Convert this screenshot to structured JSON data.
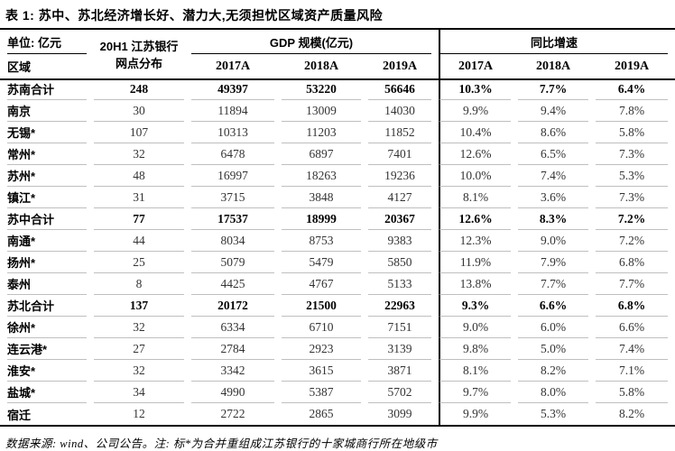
{
  "title": "表 1: 苏中、苏北经济增长好、潜力大,无须担忧区域资产质量风险",
  "header": {
    "unit_label": "单位: 亿元",
    "region_label": "区域",
    "branch_label_line1": "20H1 江苏银行",
    "branch_label_line2": "网点分布",
    "gdp_group_label": "GDP 规模(亿元)",
    "growth_group_label": "同比增速",
    "year_cols": [
      "2017A",
      "2018A",
      "2019A"
    ]
  },
  "rows": [
    {
      "region": "苏南合计",
      "subtotal": true,
      "branches": "248",
      "gdp": [
        "49397",
        "53220",
        "56646"
      ],
      "growth": [
        "10.3%",
        "7.7%",
        "6.4%"
      ]
    },
    {
      "region": "南京",
      "subtotal": false,
      "branches": "30",
      "gdp": [
        "11894",
        "13009",
        "14030"
      ],
      "growth": [
        "9.9%",
        "9.4%",
        "7.8%"
      ]
    },
    {
      "region": "无锡*",
      "subtotal": false,
      "branches": "107",
      "gdp": [
        "10313",
        "11203",
        "11852"
      ],
      "growth": [
        "10.4%",
        "8.6%",
        "5.8%"
      ]
    },
    {
      "region": "常州*",
      "subtotal": false,
      "branches": "32",
      "gdp": [
        "6478",
        "6897",
        "7401"
      ],
      "growth": [
        "12.6%",
        "6.5%",
        "7.3%"
      ]
    },
    {
      "region": "苏州*",
      "subtotal": false,
      "branches": "48",
      "gdp": [
        "16997",
        "18263",
        "19236"
      ],
      "growth": [
        "10.0%",
        "7.4%",
        "5.3%"
      ]
    },
    {
      "region": "镇江*",
      "subtotal": false,
      "branches": "31",
      "gdp": [
        "3715",
        "3848",
        "4127"
      ],
      "growth": [
        "8.1%",
        "3.6%",
        "7.3%"
      ]
    },
    {
      "region": "苏中合计",
      "subtotal": true,
      "branches": "77",
      "gdp": [
        "17537",
        "18999",
        "20367"
      ],
      "growth": [
        "12.6%",
        "8.3%",
        "7.2%"
      ]
    },
    {
      "region": "南通*",
      "subtotal": false,
      "branches": "44",
      "gdp": [
        "8034",
        "8753",
        "9383"
      ],
      "growth": [
        "12.3%",
        "9.0%",
        "7.2%"
      ]
    },
    {
      "region": "扬州*",
      "subtotal": false,
      "branches": "25",
      "gdp": [
        "5079",
        "5479",
        "5850"
      ],
      "growth": [
        "11.9%",
        "7.9%",
        "6.8%"
      ]
    },
    {
      "region": "泰州",
      "subtotal": false,
      "branches": "8",
      "gdp": [
        "4425",
        "4767",
        "5133"
      ],
      "growth": [
        "13.8%",
        "7.7%",
        "7.7%"
      ]
    },
    {
      "region": "苏北合计",
      "subtotal": true,
      "branches": "137",
      "gdp": [
        "20172",
        "21500",
        "22963"
      ],
      "growth": [
        "9.3%",
        "6.6%",
        "6.8%"
      ]
    },
    {
      "region": "徐州*",
      "subtotal": false,
      "branches": "32",
      "gdp": [
        "6334",
        "6710",
        "7151"
      ],
      "growth": [
        "9.0%",
        "6.0%",
        "6.6%"
      ]
    },
    {
      "region": "连云港*",
      "subtotal": false,
      "branches": "27",
      "gdp": [
        "2784",
        "2923",
        "3139"
      ],
      "growth": [
        "9.8%",
        "5.0%",
        "7.4%"
      ]
    },
    {
      "region": "淮安*",
      "subtotal": false,
      "branches": "32",
      "gdp": [
        "3342",
        "3615",
        "3871"
      ],
      "growth": [
        "8.1%",
        "8.2%",
        "7.1%"
      ]
    },
    {
      "region": "盐城*",
      "subtotal": false,
      "branches": "34",
      "gdp": [
        "4990",
        "5387",
        "5702"
      ],
      "growth": [
        "9.7%",
        "8.0%",
        "5.8%"
      ]
    },
    {
      "region": "宿迁",
      "subtotal": false,
      "branches": "12",
      "gdp": [
        "2722",
        "2865",
        "3099"
      ],
      "growth": [
        "9.9%",
        "5.3%",
        "8.2%"
      ]
    }
  ],
  "footer": "数据来源: wind、公司公告。注: 标*为合并重组成江苏银行的十家城商行所在地级市"
}
